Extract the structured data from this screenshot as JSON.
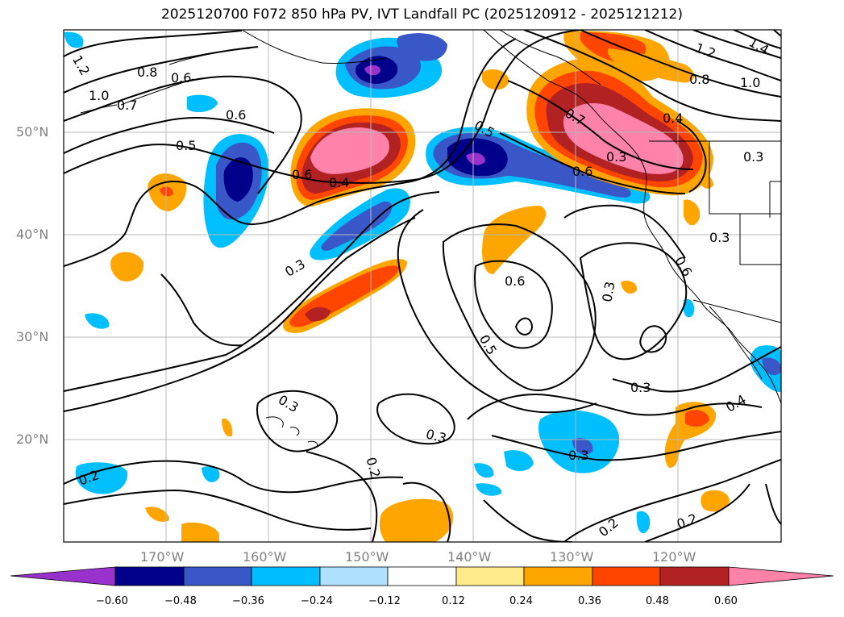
{
  "title": "2025120700 F072 850 hPa PV, IVT Landfall PC (2025120912 - 2025121212)",
  "lat_labels": [
    "50°N",
    "40°N",
    "30°N",
    "20°N"
  ],
  "lon_labels": [
    "170°W",
    "160°W",
    "150°W",
    "140°W",
    "130°W",
    "120°W"
  ],
  "colorbar": {
    "ticks": [
      "−0.60",
      "−0.48",
      "−0.36",
      "−0.24",
      "−0.12",
      "0.12",
      "0.24",
      "0.36",
      "0.48",
      "0.60"
    ],
    "colors": [
      "#9932cc",
      "#00008b",
      "#3a57c8",
      "#00bfff",
      "#b0e2ff",
      "#ffffff",
      "#ffeb8c",
      "#ffa500",
      "#ff4500",
      "#b22222",
      "#ff82ab"
    ]
  },
  "contour_labels": [
    "1.2",
    "1.0",
    "0.8",
    "0.6",
    "0.7",
    "0.6",
    "0.5",
    "0.6",
    "0.4",
    "0.3",
    "0.5",
    "0.6",
    "0.7",
    "0.4",
    "0.3",
    "1.2",
    "1.4",
    "0.8",
    "1.0",
    "0.3",
    "0.3",
    "0.6",
    "0.3",
    "0.5",
    "0.3",
    "0.4",
    "0.3",
    "0.3",
    "0.2",
    "0.2",
    "0.2",
    "0.2",
    "0.3",
    "0.6"
  ]
}
